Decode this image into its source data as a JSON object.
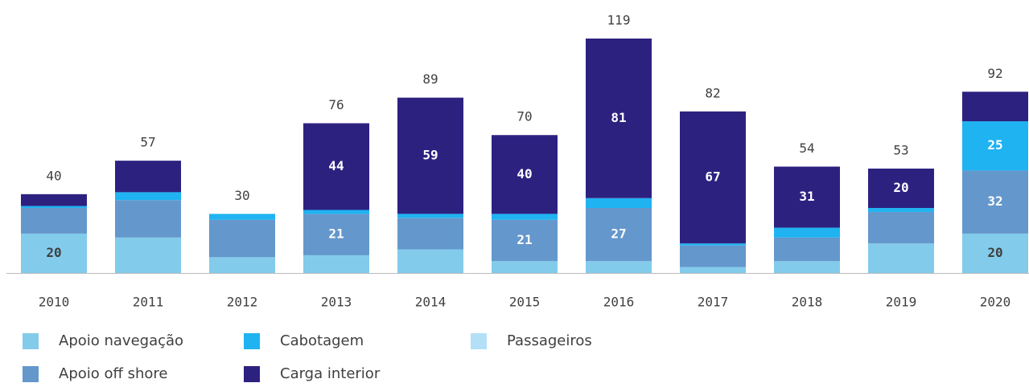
{
  "chart_data": {
    "type": "stacked-bar",
    "categories": [
      "2010",
      "2011",
      "2012",
      "2013",
      "2014",
      "2015",
      "2016",
      "2017",
      "2018",
      "2019",
      "2020"
    ],
    "series": [
      {
        "name": "Apoio navegação",
        "color": "#83cbeb",
        "values": [
          20,
          18,
          8,
          9,
          12,
          6,
          6,
          3,
          6,
          15,
          20
        ]
      },
      {
        "name": "Apoio off shore",
        "color": "#6497cc",
        "values": [
          13,
          19,
          19,
          21,
          16,
          21,
          27,
          11,
          12,
          16,
          32
        ]
      },
      {
        "name": "Cabotagem",
        "color": "#1fb3f2",
        "values": [
          1,
          4,
          3,
          2,
          2,
          3,
          5,
          1,
          5,
          2,
          25
        ]
      },
      {
        "name": "Carga interior",
        "color": "#2d2180",
        "values": [
          6,
          16,
          0,
          44,
          59,
          40,
          81,
          67,
          31,
          20,
          15
        ]
      },
      {
        "name": "Passageiros",
        "color": "#b3e0f7",
        "values": [
          0,
          0,
          0,
          0,
          0,
          0,
          0,
          0,
          0,
          0,
          0
        ]
      }
    ],
    "totals": [
      40,
      57,
      30,
      76,
      89,
      70,
      119,
      82,
      54,
      53,
      92
    ]
  }
}
